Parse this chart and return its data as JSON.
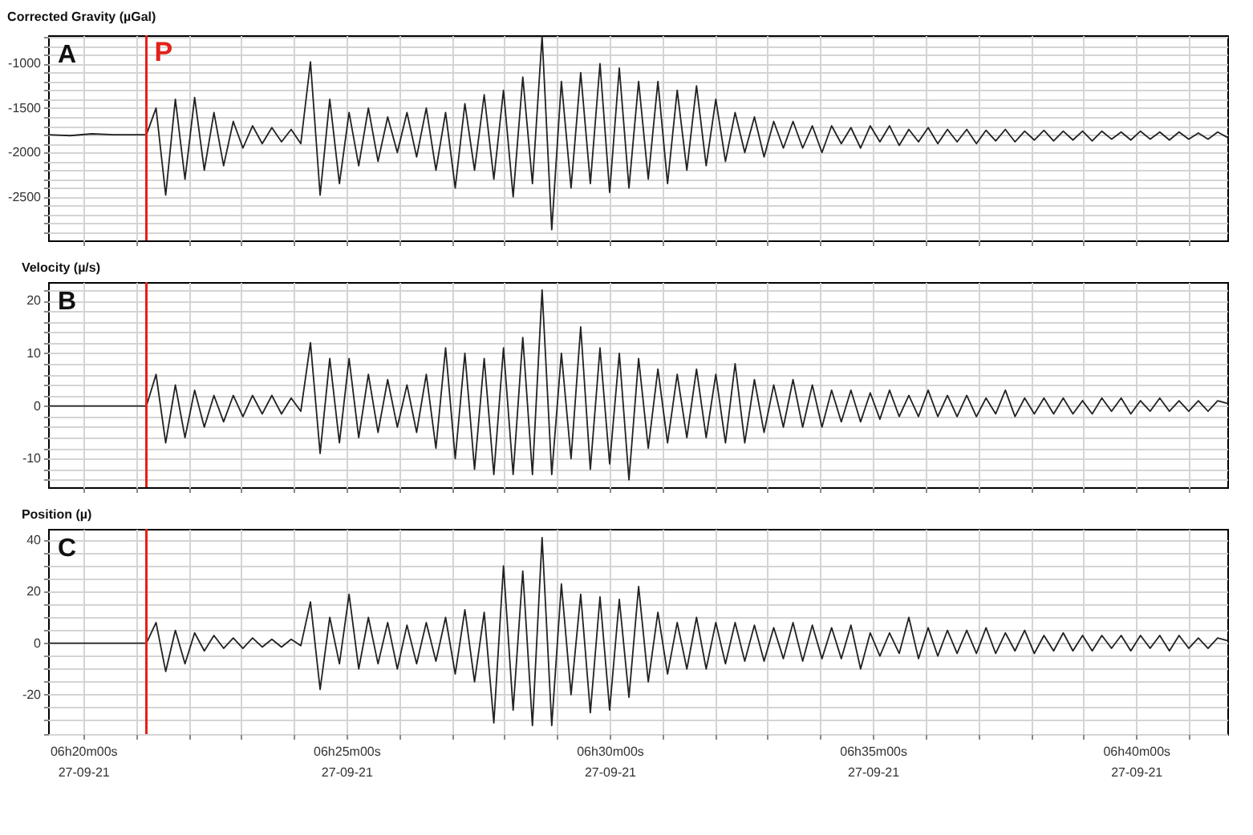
{
  "chart_data": [
    {
      "type": "line",
      "title": "Corrected Gravity (µGal)",
      "annotations": [
        "A"
      ],
      "color": "#222222",
      "grid": true,
      "tick_labels": "y",
      "xlim": [
        "--09-27T06:19:20",
        "--09-27T06:41:44"
      ],
      "ylim": [
        -2990,
        -680
      ],
      "xticks": [
        {
          "value": "--09-27T06:20:00",
          "label": null
        },
        {
          "value": "--09-27T06:21:00",
          "label": null
        },
        {
          "value": "--09-27T06:22:00",
          "label": null
        },
        {
          "value": "--09-27T06:23:00",
          "label": null
        },
        {
          "value": "--09-27T06:24:00",
          "label": null
        },
        {
          "value": "--09-27T06:25:00",
          "label": null
        },
        {
          "value": "--09-27T06:26:00",
          "label": null
        },
        {
          "value": "--09-27T06:27:00",
          "label": null
        },
        {
          "value": "--09-27T06:28:00",
          "label": null
        },
        {
          "value": "--09-27T06:29:00",
          "label": null
        },
        {
          "value": "--09-27T06:30:00",
          "label": null
        },
        {
          "value": "--09-27T06:31:00",
          "label": null
        },
        {
          "value": "--09-27T06:32:00",
          "label": null
        },
        {
          "value": "--09-27T06:33:00",
          "label": null
        },
        {
          "value": "--09-27T06:34:00",
          "label": null
        },
        {
          "value": "--09-27T06:35:00",
          "label": null
        },
        {
          "value": "--09-27T06:36:00",
          "label": null
        },
        {
          "value": "--09-27T06:37:00",
          "label": null
        },
        {
          "value": "--09-27T06:38:00",
          "label": null
        },
        {
          "value": "--09-27T06:39:00",
          "label": null
        },
        {
          "value": "--09-27T06:40:00",
          "label": null
        },
        {
          "value": "--09-27T06:41:00",
          "label": null
        }
      ],
      "yticks": [
        {
          "value": -2900,
          "label": null
        },
        {
          "value": -2800,
          "label": null
        },
        {
          "value": -2700,
          "label": null
        },
        {
          "value": -2600,
          "label": null
        },
        -2500,
        {
          "value": -2400,
          "label": null
        },
        {
          "value": -2300,
          "label": null
        },
        {
          "value": -2200,
          "label": null
        },
        {
          "value": -2100,
          "label": null
        },
        -2000,
        {
          "value": -1900,
          "label": null
        },
        {
          "value": -1800,
          "label": null
        },
        {
          "value": -1700,
          "label": null
        },
        {
          "value": -1600,
          "label": null
        },
        -1500,
        {
          "value": -1400,
          "label": null
        },
        {
          "value": -1300,
          "label": null
        },
        {
          "value": -1200,
          "label": null
        },
        {
          "value": -1100,
          "label": null
        },
        -1000,
        {
          "value": -900,
          "label": null
        },
        {
          "value": -800,
          "label": null
        },
        {
          "value": -700,
          "label": null
        }
      ],
      "ref_lines": [
        {
          "axis": "x",
          "value": "--09-27T06:21:12",
          "label": "P",
          "color": "#e32119"
        }
      ],
      "x": [
        "--09-27T06:19:20",
        "--09-27T06:19:45",
        "--09-27T06:20:10",
        "--09-27T06:20:35",
        "--09-27T06:21:00",
        "--09-27T06:21:12",
        "--09-27T06:21:23",
        "--09-27T06:21:34",
        "--09-27T06:21:45",
        "--09-27T06:21:56",
        "--09-27T06:22:07",
        "--09-27T06:22:18",
        "--09-27T06:22:29",
        "--09-27T06:22:40",
        "--09-27T06:22:51",
        "--09-27T06:23:02",
        "--09-27T06:23:13",
        "--09-27T06:23:24",
        "--09-27T06:23:35",
        "--09-27T06:23:46",
        "--09-27T06:23:57",
        "--09-27T06:24:08",
        "--09-27T06:24:19",
        "--09-27T06:24:30",
        "--09-27T06:24:41",
        "--09-27T06:24:52",
        "--09-27T06:25:03",
        "--09-27T06:25:14",
        "--09-27T06:25:25",
        "--09-27T06:25:36",
        "--09-27T06:25:47",
        "--09-27T06:25:58",
        "--09-27T06:26:09",
        "--09-27T06:26:20",
        "--09-27T06:26:31",
        "--09-27T06:26:42",
        "--09-27T06:26:53",
        "--09-27T06:27:04",
        "--09-27T06:27:15",
        "--09-27T06:27:26",
        "--09-27T06:27:37",
        "--09-27T06:27:48",
        "--09-27T06:27:59",
        "--09-27T06:28:10",
        "--09-27T06:28:21",
        "--09-27T06:28:32",
        "--09-27T06:28:43",
        "--09-27T06:28:54",
        "--09-27T06:29:05",
        "--09-27T06:29:16",
        "--09-27T06:29:27",
        "--09-27T06:29:38",
        "--09-27T06:29:49",
        "--09-27T06:30:00",
        "--09-27T06:30:11",
        "--09-27T06:30:22",
        "--09-27T06:30:33",
        "--09-27T06:30:44",
        "--09-27T06:30:55",
        "--09-27T06:31:06",
        "--09-27T06:31:17",
        "--09-27T06:31:28",
        "--09-27T06:31:39",
        "--09-27T06:31:50",
        "--09-27T06:32:01",
        "--09-27T06:32:12",
        "--09-27T06:32:23",
        "--09-27T06:32:34",
        "--09-27T06:32:45",
        "--09-27T06:32:56",
        "--09-27T06:33:07",
        "--09-27T06:33:18",
        "--09-27T06:33:29",
        "--09-27T06:33:40",
        "--09-27T06:33:51",
        "--09-27T06:34:02",
        "--09-27T06:34:13",
        "--09-27T06:34:24",
        "--09-27T06:34:35",
        "--09-27T06:34:46",
        "--09-27T06:34:57",
        "--09-27T06:35:08",
        "--09-27T06:35:19",
        "--09-27T06:35:30",
        "--09-27T06:35:41",
        "--09-27T06:35:52",
        "--09-27T06:36:03",
        "--09-27T06:36:14",
        "--09-27T06:36:25",
        "--09-27T06:36:36",
        "--09-27T06:36:47",
        "--09-27T06:36:58",
        "--09-27T06:37:09",
        "--09-27T06:37:20",
        "--09-27T06:37:31",
        "--09-27T06:37:42",
        "--09-27T06:37:53",
        "--09-27T06:38:04",
        "--09-27T06:38:15",
        "--09-27T06:38:26",
        "--09-27T06:38:37",
        "--09-27T06:38:48",
        "--09-27T06:38:59",
        "--09-27T06:39:10",
        "--09-27T06:39:21",
        "--09-27T06:39:32",
        "--09-27T06:39:43",
        "--09-27T06:39:54",
        "--09-27T06:40:05",
        "--09-27T06:40:16",
        "--09-27T06:40:27",
        "--09-27T06:40:38",
        "--09-27T06:40:49",
        "--09-27T06:41:00",
        "--09-27T06:41:11",
        "--09-27T06:41:22",
        "--09-27T06:41:33",
        "--09-27T06:41:44"
      ],
      "values": [
        -1800,
        -1810,
        -1790,
        -1800,
        -1800,
        -1800,
        -1500,
        -2480,
        -1400,
        -2300,
        -1380,
        -2200,
        -1550,
        -2150,
        -1650,
        -1950,
        -1700,
        -1900,
        -1720,
        -1880,
        -1740,
        -1900,
        -980,
        -2480,
        -1400,
        -2350,
        -1550,
        -2150,
        -1500,
        -2100,
        -1600,
        -2000,
        -1550,
        -2050,
        -1500,
        -2200,
        -1550,
        -2400,
        -1450,
        -2200,
        -1350,
        -2300,
        -1300,
        -2500,
        -1150,
        -2350,
        -690,
        -2870,
        -1200,
        -2400,
        -1100,
        -2350,
        -1000,
        -2450,
        -1050,
        -2400,
        -1200,
        -2300,
        -1200,
        -2350,
        -1300,
        -2200,
        -1250,
        -2150,
        -1400,
        -2100,
        -1550,
        -2000,
        -1600,
        -2050,
        -1650,
        -1950,
        -1650,
        -1950,
        -1700,
        -2000,
        -1700,
        -1900,
        -1720,
        -1950,
        -1700,
        -1880,
        -1700,
        -1920,
        -1740,
        -1880,
        -1720,
        -1900,
        -1740,
        -1880,
        -1740,
        -1900,
        -1750,
        -1870,
        -1740,
        -1880,
        -1760,
        -1860,
        -1750,
        -1870,
        -1760,
        -1860,
        -1760,
        -1870,
        -1760,
        -1850,
        -1770,
        -1860,
        -1760,
        -1850,
        -1770,
        -1860,
        -1770,
        -1850,
        -1780,
        -1850,
        -1770,
        -1830
      ]
    },
    {
      "type": "line",
      "title": "Velocity (µ/s)",
      "annotations": [
        "B"
      ],
      "color": "#222222",
      "grid": true,
      "tick_labels": "y",
      "xlim": [
        "--09-27T06:19:20",
        "--09-27T06:41:44"
      ],
      "ylim": [
        -15.4,
        23.5
      ],
      "xticks": [
        {
          "value": "--09-27T06:20:00",
          "label": null
        },
        {
          "value": "--09-27T06:21:00",
          "label": null
        },
        {
          "value": "--09-27T06:22:00",
          "label": null
        },
        {
          "value": "--09-27T06:23:00",
          "label": null
        },
        {
          "value": "--09-27T06:24:00",
          "label": null
        },
        {
          "value": "--09-27T06:25:00",
          "label": null
        },
        {
          "value": "--09-27T06:26:00",
          "label": null
        },
        {
          "value": "--09-27T06:27:00",
          "label": null
        },
        {
          "value": "--09-27T06:28:00",
          "label": null
        },
        {
          "value": "--09-27T06:29:00",
          "label": null
        },
        {
          "value": "--09-27T06:30:00",
          "label": null
        },
        {
          "value": "--09-27T06:31:00",
          "label": null
        },
        {
          "value": "--09-27T06:32:00",
          "label": null
        },
        {
          "value": "--09-27T06:33:00",
          "label": null
        },
        {
          "value": "--09-27T06:34:00",
          "label": null
        },
        {
          "value": "--09-27T06:35:00",
          "label": null
        },
        {
          "value": "--09-27T06:36:00",
          "label": null
        },
        {
          "value": "--09-27T06:37:00",
          "label": null
        },
        {
          "value": "--09-27T06:38:00",
          "label": null
        },
        {
          "value": "--09-27T06:39:00",
          "label": null
        },
        {
          "value": "--09-27T06:40:00",
          "label": null
        },
        {
          "value": "--09-27T06:41:00",
          "label": null
        }
      ],
      "yticks": [
        {
          "value": -14,
          "label": null
        },
        {
          "value": -12,
          "label": null
        },
        -10,
        {
          "value": -8,
          "label": null
        },
        {
          "value": -6,
          "label": null
        },
        {
          "value": -4,
          "label": null
        },
        {
          "value": -2,
          "label": null
        },
        0,
        {
          "value": 2,
          "label": null
        },
        {
          "value": 4,
          "label": null
        },
        {
          "value": 6,
          "label": null
        },
        {
          "value": 8,
          "label": null
        },
        10,
        {
          "value": 12,
          "label": null
        },
        {
          "value": 14,
          "label": null
        },
        {
          "value": 16,
          "label": null
        },
        {
          "value": 18,
          "label": null
        },
        20,
        {
          "value": 22,
          "label": null
        }
      ],
      "ref_lines": [
        {
          "axis": "x",
          "value": "--09-27T06:21:12",
          "color": "#e32119"
        }
      ],
      "x": [
        "--09-27T06:19:20",
        "--09-27T06:19:45",
        "--09-27T06:20:10",
        "--09-27T06:20:35",
        "--09-27T06:21:00",
        "--09-27T06:21:12",
        "--09-27T06:21:23",
        "--09-27T06:21:34",
        "--09-27T06:21:45",
        "--09-27T06:21:56",
        "--09-27T06:22:07",
        "--09-27T06:22:18",
        "--09-27T06:22:29",
        "--09-27T06:22:40",
        "--09-27T06:22:51",
        "--09-27T06:23:02",
        "--09-27T06:23:13",
        "--09-27T06:23:24",
        "--09-27T06:23:35",
        "--09-27T06:23:46",
        "--09-27T06:23:57",
        "--09-27T06:24:08",
        "--09-27T06:24:19",
        "--09-27T06:24:30",
        "--09-27T06:24:41",
        "--09-27T06:24:52",
        "--09-27T06:25:03",
        "--09-27T06:25:14",
        "--09-27T06:25:25",
        "--09-27T06:25:36",
        "--09-27T06:25:47",
        "--09-27T06:25:58",
        "--09-27T06:26:09",
        "--09-27T06:26:20",
        "--09-27T06:26:31",
        "--09-27T06:26:42",
        "--09-27T06:26:53",
        "--09-27T06:27:04",
        "--09-27T06:27:15",
        "--09-27T06:27:26",
        "--09-27T06:27:37",
        "--09-27T06:27:48",
        "--09-27T06:27:59",
        "--09-27T06:28:10",
        "--09-27T06:28:21",
        "--09-27T06:28:32",
        "--09-27T06:28:43",
        "--09-27T06:28:54",
        "--09-27T06:29:05",
        "--09-27T06:29:16",
        "--09-27T06:29:27",
        "--09-27T06:29:38",
        "--09-27T06:29:49",
        "--09-27T06:30:00",
        "--09-27T06:30:11",
        "--09-27T06:30:22",
        "--09-27T06:30:33",
        "--09-27T06:30:44",
        "--09-27T06:30:55",
        "--09-27T06:31:06",
        "--09-27T06:31:17",
        "--09-27T06:31:28",
        "--09-27T06:31:39",
        "--09-27T06:31:50",
        "--09-27T06:32:01",
        "--09-27T06:32:12",
        "--09-27T06:32:23",
        "--09-27T06:32:34",
        "--09-27T06:32:45",
        "--09-27T06:32:56",
        "--09-27T06:33:07",
        "--09-27T06:33:18",
        "--09-27T06:33:29",
        "--09-27T06:33:40",
        "--09-27T06:33:51",
        "--09-27T06:34:02",
        "--09-27T06:34:13",
        "--09-27T06:34:24",
        "--09-27T06:34:35",
        "--09-27T06:34:46",
        "--09-27T06:34:57",
        "--09-27T06:35:08",
        "--09-27T06:35:19",
        "--09-27T06:35:30",
        "--09-27T06:35:41",
        "--09-27T06:35:52",
        "--09-27T06:36:03",
        "--09-27T06:36:14",
        "--09-27T06:36:25",
        "--09-27T06:36:36",
        "--09-27T06:36:47",
        "--09-27T06:36:58",
        "--09-27T06:37:09",
        "--09-27T06:37:20",
        "--09-27T06:37:31",
        "--09-27T06:37:42",
        "--09-27T06:37:53",
        "--09-27T06:38:04",
        "--09-27T06:38:15",
        "--09-27T06:38:26",
        "--09-27T06:38:37",
        "--09-27T06:38:48",
        "--09-27T06:38:59",
        "--09-27T06:39:10",
        "--09-27T06:39:21",
        "--09-27T06:39:32",
        "--09-27T06:39:43",
        "--09-27T06:39:54",
        "--09-27T06:40:05",
        "--09-27T06:40:16",
        "--09-27T06:40:27",
        "--09-27T06:40:38",
        "--09-27T06:40:49",
        "--09-27T06:41:00",
        "--09-27T06:41:11",
        "--09-27T06:41:22",
        "--09-27T06:41:33",
        "--09-27T06:41:44"
      ],
      "values": [
        0,
        0,
        0,
        0,
        0,
        0,
        6,
        -7,
        4,
        -6,
        3,
        -4,
        2,
        -3,
        2,
        -2,
        2,
        -1.5,
        2,
        -1.5,
        1.5,
        -1,
        12,
        -9,
        9,
        -7,
        9,
        -6,
        6,
        -5,
        5,
        -4,
        4,
        -5,
        6,
        -8,
        11,
        -10,
        10,
        -12,
        9,
        -13,
        11,
        -13,
        13,
        -13,
        22,
        -13,
        10,
        -10,
        15,
        -12,
        11,
        -11,
        10,
        -14,
        9,
        -8,
        7,
        -7,
        6,
        -6,
        7,
        -6,
        6,
        -7,
        8,
        -7,
        5,
        -5,
        4,
        -4,
        5,
        -4,
        4,
        -4,
        3,
        -3,
        3,
        -3,
        2.5,
        -2.5,
        3,
        -2,
        2,
        -2,
        3,
        -2,
        2,
        -2,
        2,
        -2,
        1.5,
        -1.5,
        3,
        -2,
        1.5,
        -1.5,
        1.5,
        -1.5,
        1.5,
        -1.5,
        1,
        -1.5,
        1.5,
        -1,
        1.5,
        -1.5,
        1,
        -1,
        1.5,
        -1,
        1,
        -1,
        1,
        -1,
        1,
        0.5
      ]
    },
    {
      "type": "line",
      "title": "Position (µ)",
      "annotations": [
        "C"
      ],
      "color": "#222222",
      "grid": true,
      "xlim": [
        "--09-27T06:19:20",
        "--09-27T06:41:44"
      ],
      "ylim": [
        -35.3,
        44.4
      ],
      "xticks": [
        {
          "value": "--09-27T06:20:00",
          "label": "06h20m00s\n27-09-21"
        },
        {
          "value": "--09-27T06:21:00",
          "label": null
        },
        {
          "value": "--09-27T06:22:00",
          "label": null
        },
        {
          "value": "--09-27T06:23:00",
          "label": null
        },
        {
          "value": "--09-27T06:24:00",
          "label": null
        },
        {
          "value": "--09-27T06:25:00",
          "label": "06h25m00s\n27-09-21"
        },
        {
          "value": "--09-27T06:26:00",
          "label": null
        },
        {
          "value": "--09-27T06:27:00",
          "label": null
        },
        {
          "value": "--09-27T06:28:00",
          "label": null
        },
        {
          "value": "--09-27T06:29:00",
          "label": null
        },
        {
          "value": "--09-27T06:30:00",
          "label": "06h30m00s\n27-09-21"
        },
        {
          "value": "--09-27T06:31:00",
          "label": null
        },
        {
          "value": "--09-27T06:32:00",
          "label": null
        },
        {
          "value": "--09-27T06:33:00",
          "label": null
        },
        {
          "value": "--09-27T06:34:00",
          "label": null
        },
        {
          "value": "--09-27T06:35:00",
          "label": "06h35m00s\n27-09-21"
        },
        {
          "value": "--09-27T06:36:00",
          "label": null
        },
        {
          "value": "--09-27T06:37:00",
          "label": null
        },
        {
          "value": "--09-27T06:38:00",
          "label": null
        },
        {
          "value": "--09-27T06:39:00",
          "label": null
        },
        {
          "value": "--09-27T06:40:00",
          "label": "06h40m00s\n27-09-21"
        },
        {
          "value": "--09-27T06:41:00",
          "label": null
        }
      ],
      "yticks": [
        {
          "value": -35,
          "label": null
        },
        {
          "value": -30,
          "label": null
        },
        {
          "value": -25,
          "label": null
        },
        -20,
        {
          "value": -15,
          "label": null
        },
        {
          "value": -10,
          "label": null
        },
        {
          "value": -5,
          "label": null
        },
        0,
        {
          "value": 5,
          "label": null
        },
        {
          "value": 10,
          "label": null
        },
        {
          "value": 15,
          "label": null
        },
        20,
        {
          "value": 25,
          "label": null
        },
        {
          "value": 30,
          "label": null
        },
        {
          "value": 35,
          "label": null
        },
        40
      ],
      "ref_lines": [
        {
          "axis": "x",
          "value": "--09-27T06:21:12",
          "color": "#e32119"
        }
      ],
      "x": [
        "--09-27T06:19:20",
        "--09-27T06:19:45",
        "--09-27T06:20:10",
        "--09-27T06:20:35",
        "--09-27T06:21:00",
        "--09-27T06:21:12",
        "--09-27T06:21:23",
        "--09-27T06:21:34",
        "--09-27T06:21:45",
        "--09-27T06:21:56",
        "--09-27T06:22:07",
        "--09-27T06:22:18",
        "--09-27T06:22:29",
        "--09-27T06:22:40",
        "--09-27T06:22:51",
        "--09-27T06:23:02",
        "--09-27T06:23:13",
        "--09-27T06:23:24",
        "--09-27T06:23:35",
        "--09-27T06:23:46",
        "--09-27T06:23:57",
        "--09-27T06:24:08",
        "--09-27T06:24:19",
        "--09-27T06:24:30",
        "--09-27T06:24:41",
        "--09-27T06:24:52",
        "--09-27T06:25:03",
        "--09-27T06:25:14",
        "--09-27T06:25:25",
        "--09-27T06:25:36",
        "--09-27T06:25:47",
        "--09-27T06:25:58",
        "--09-27T06:26:09",
        "--09-27T06:26:20",
        "--09-27T06:26:31",
        "--09-27T06:26:42",
        "--09-27T06:26:53",
        "--09-27T06:27:04",
        "--09-27T06:27:15",
        "--09-27T06:27:26",
        "--09-27T06:27:37",
        "--09-27T06:27:48",
        "--09-27T06:27:59",
        "--09-27T06:28:10",
        "--09-27T06:28:21",
        "--09-27T06:28:32",
        "--09-27T06:28:43",
        "--09-27T06:28:54",
        "--09-27T06:29:05",
        "--09-27T06:29:16",
        "--09-27T06:29:27",
        "--09-27T06:29:38",
        "--09-27T06:29:49",
        "--09-27T06:30:00",
        "--09-27T06:30:11",
        "--09-27T06:30:22",
        "--09-27T06:30:33",
        "--09-27T06:30:44",
        "--09-27T06:30:55",
        "--09-27T06:31:06",
        "--09-27T06:31:17",
        "--09-27T06:31:28",
        "--09-27T06:31:39",
        "--09-27T06:31:50",
        "--09-27T06:32:01",
        "--09-27T06:32:12",
        "--09-27T06:32:23",
        "--09-27T06:32:34",
        "--09-27T06:32:45",
        "--09-27T06:32:56",
        "--09-27T06:33:07",
        "--09-27T06:33:18",
        "--09-27T06:33:29",
        "--09-27T06:33:40",
        "--09-27T06:33:51",
        "--09-27T06:34:02",
        "--09-27T06:34:13",
        "--09-27T06:34:24",
        "--09-27T06:34:35",
        "--09-27T06:34:46",
        "--09-27T06:34:57",
        "--09-27T06:35:08",
        "--09-27T06:35:19",
        "--09-27T06:35:30",
        "--09-27T06:35:41",
        "--09-27T06:35:52",
        "--09-27T06:36:03",
        "--09-27T06:36:14",
        "--09-27T06:36:25",
        "--09-27T06:36:36",
        "--09-27T06:36:47",
        "--09-27T06:36:58",
        "--09-27T06:37:09",
        "--09-27T06:37:20",
        "--09-27T06:37:31",
        "--09-27T06:37:42",
        "--09-27T06:37:53",
        "--09-27T06:38:04",
        "--09-27T06:38:15",
        "--09-27T06:38:26",
        "--09-27T06:38:37",
        "--09-27T06:38:48",
        "--09-27T06:38:59",
        "--09-27T06:39:10",
        "--09-27T06:39:21",
        "--09-27T06:39:32",
        "--09-27T06:39:43",
        "--09-27T06:39:54",
        "--09-27T06:40:05",
        "--09-27T06:40:16",
        "--09-27T06:40:27",
        "--09-27T06:40:38",
        "--09-27T06:40:49",
        "--09-27T06:41:00",
        "--09-27T06:41:11",
        "--09-27T06:41:22",
        "--09-27T06:41:33",
        "--09-27T06:41:44"
      ],
      "values": [
        0,
        0,
        0,
        0,
        0,
        0,
        8,
        -11,
        5,
        -8,
        4,
        -3,
        3,
        -2,
        2,
        -2,
        2,
        -1.5,
        1.5,
        -1.5,
        1.5,
        -1,
        16,
        -18,
        10,
        -8,
        19,
        -10,
        10,
        -8,
        8,
        -10,
        7,
        -8,
        8,
        -7,
        10,
        -12,
        13,
        -15,
        12,
        -31,
        30,
        -26,
        28,
        -32,
        41,
        -32,
        23,
        -20,
        19,
        -27,
        18,
        -26,
        17,
        -21,
        22,
        -15,
        12,
        -12,
        8,
        -10,
        10,
        -10,
        8,
        -8,
        8,
        -7,
        7,
        -7,
        6,
        -6,
        8,
        -7,
        7,
        -6,
        6,
        -6,
        7,
        -10,
        4,
        -5,
        4,
        -4,
        10,
        -6,
        6,
        -5,
        5,
        -4,
        5,
        -4,
        6,
        -4,
        4,
        -3,
        5,
        -4,
        3,
        -3,
        4,
        -3,
        3,
        -3,
        3,
        -2,
        3,
        -3,
        3,
        -2,
        3,
        -3,
        3,
        -2,
        2,
        -2,
        2,
        1
      ]
    }
  ]
}
